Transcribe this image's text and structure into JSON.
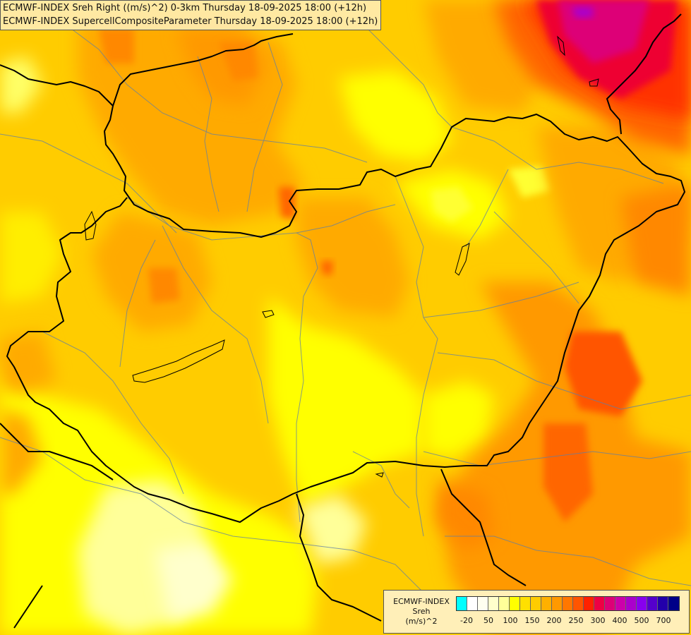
{
  "header": {
    "line1": "ECMWF-INDEX Sreh Right ((m/s)^2) 0-3km Thursday 18-09-2025 18:00 (+12h)",
    "line2": "ECMWF-INDEX SupercellCompositeParameter Thursday 18-09-2025 18:00 (+12h)"
  },
  "legend": {
    "title_model": "ECMWF-INDEX",
    "title_param": "Sreh",
    "title_unit": "(m/s)^2",
    "colors": [
      "#00ffff",
      "#ffffff",
      "#fffff0",
      "#ffffcc",
      "#ffff99",
      "#ffff00",
      "#ffe000",
      "#ffcc00",
      "#ffb000",
      "#ff9900",
      "#ff7700",
      "#ff5500",
      "#ff2200",
      "#ee0044",
      "#dd0077",
      "#cc00aa",
      "#aa00cc",
      "#8800ee",
      "#5500cc",
      "#2200aa",
      "#000088"
    ],
    "ticks": [
      "-20",
      "50",
      "100",
      "150",
      "200",
      "250",
      "300",
      "400",
      "500",
      "700"
    ]
  }
}
